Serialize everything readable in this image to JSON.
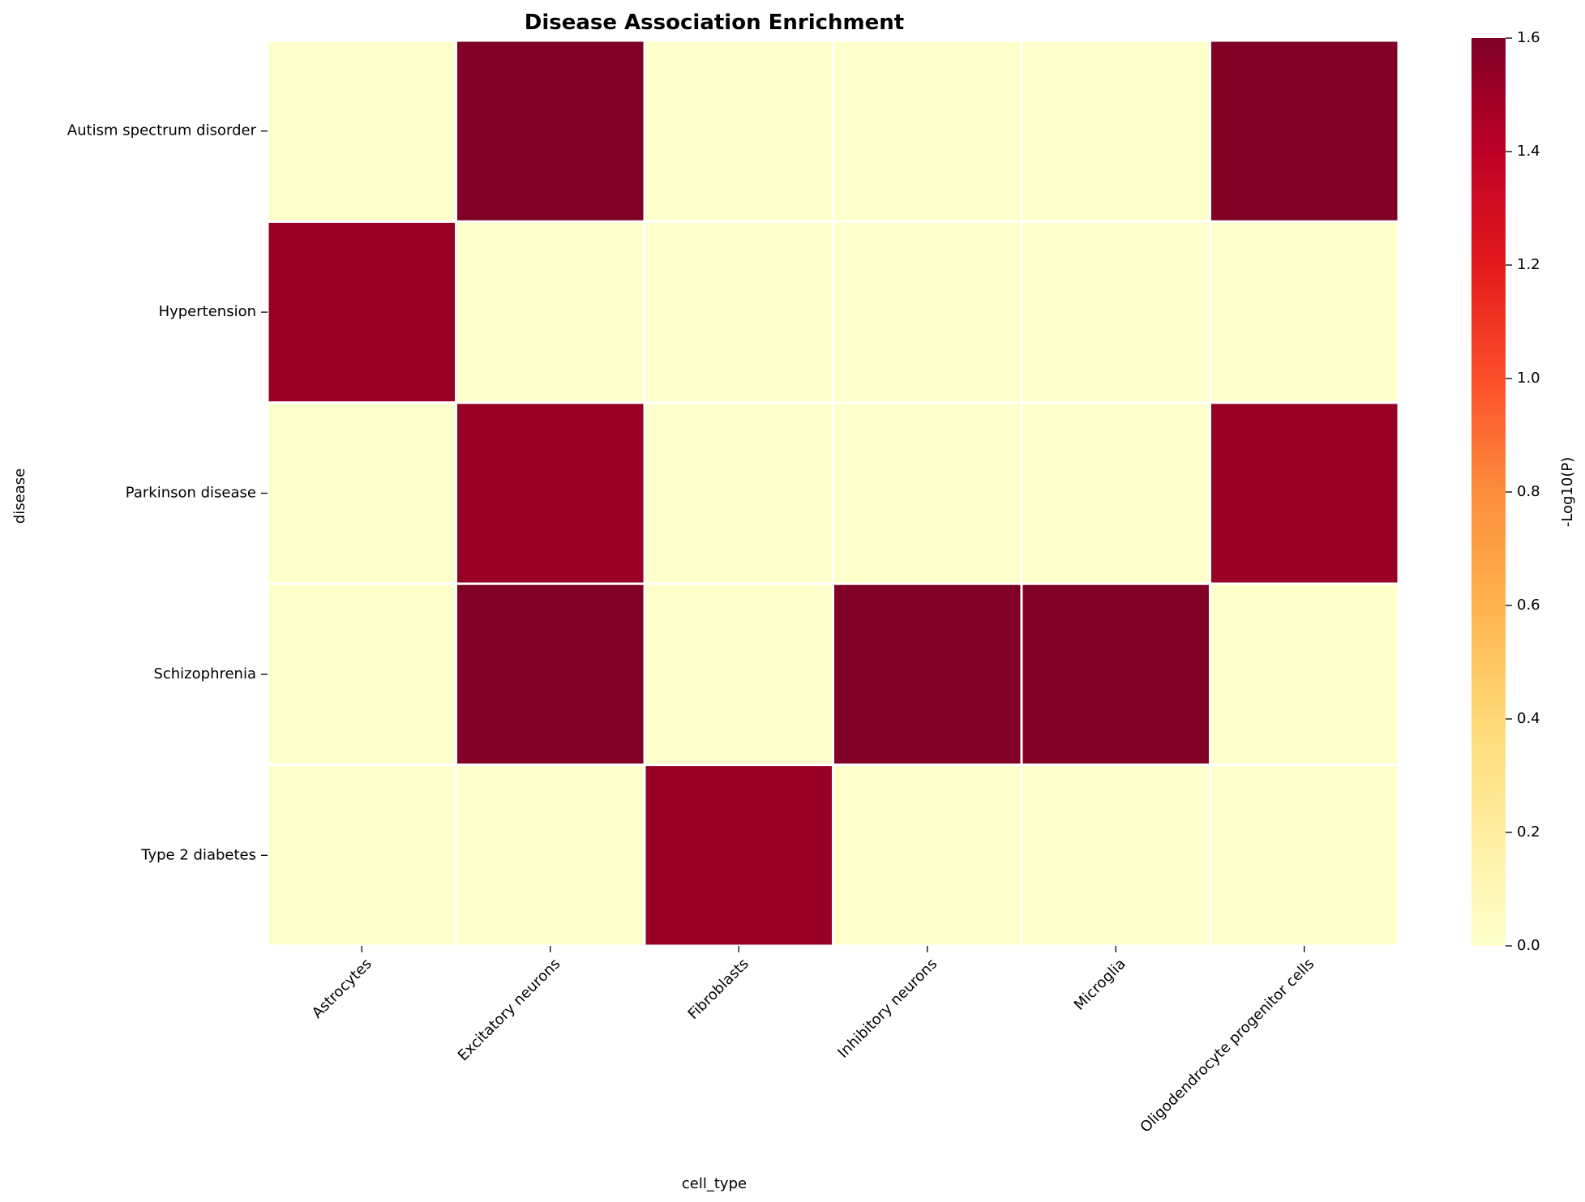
{
  "chart_data": {
    "type": "heatmap",
    "title": "Disease Association Enrichment",
    "xlabel": "cell_type",
    "ylabel": "disease",
    "colorbar_label": "-Log10(P)",
    "colorscale": "YlOrRd",
    "vmin": 0,
    "vmax": 1.6,
    "colorbar_ticks": [
      "0.0",
      "0.2",
      "0.4",
      "0.6",
      "0.8",
      "1.0",
      "1.2",
      "1.4",
      "1.6"
    ],
    "x_categories": [
      "Astrocytes",
      "Excitatory neurons",
      "Fibroblasts",
      "Inhibitory neurons",
      "Microglia",
      "Oligodendrocyte progenitor cells"
    ],
    "y_categories": [
      "Autism spectrum disorder",
      "Hypertension",
      "Parkinson disease",
      "Schizophrenia",
      "Type 2 diabetes"
    ],
    "values": [
      [
        0.0,
        1.61,
        0.0,
        0.0,
        0.0,
        1.61
      ],
      [
        1.52,
        0.0,
        0.0,
        0.0,
        0.0,
        0.0
      ],
      [
        0.0,
        1.52,
        0.0,
        0.0,
        0.0,
        1.52
      ],
      [
        0.0,
        1.61,
        0.0,
        1.61,
        1.61,
        0.0
      ],
      [
        0.0,
        0.0,
        1.52,
        0.0,
        0.0,
        0.0
      ]
    ],
    "grid": false,
    "cell_border_color": "#ffffff"
  }
}
